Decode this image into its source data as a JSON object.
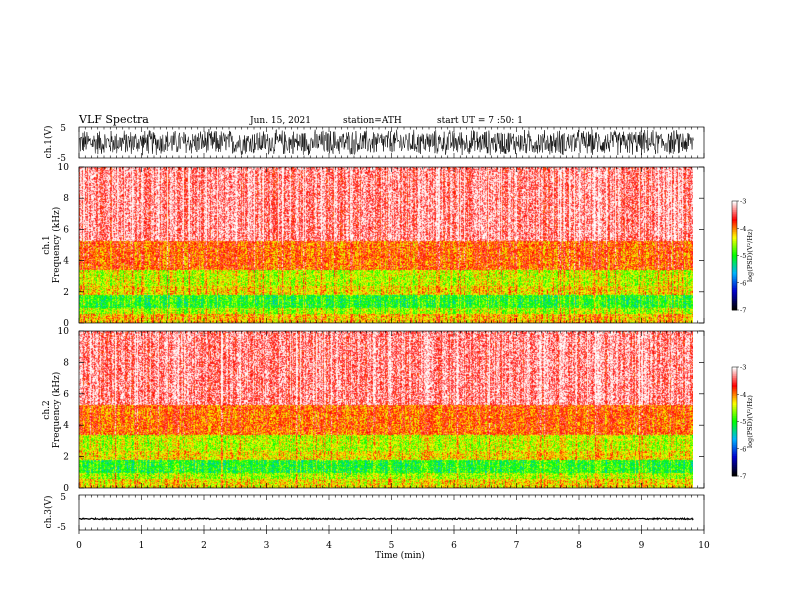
{
  "header": {
    "title": "VLF Spectra",
    "date": "Jun. 15, 2021",
    "station": "station=ATH",
    "start_ut": "start UT =  7 :50: 1"
  },
  "chart_data": [
    {
      "type": "line",
      "panel": "ch1-waveform",
      "ylabel": "ch.1(V)",
      "yticks": [
        "5",
        "-5"
      ],
      "ylim": [
        -5,
        5
      ],
      "xlim": [
        0,
        10
      ],
      "x_extent": [
        0,
        9.83
      ],
      "amplitude": 4.5,
      "line_color": "#000000"
    },
    {
      "type": "heatmap",
      "panel": "ch1-spectrogram",
      "ylabel_top": "ch.1",
      "ylabel": "Frequency (kHz)",
      "yticks": [
        "0",
        "2",
        "4",
        "6",
        "8",
        "10"
      ],
      "ylim": [
        0,
        10
      ],
      "xlim": [
        0,
        10
      ],
      "x_extent": [
        0,
        9.83
      ],
      "colorbar": {
        "label": "log(PSD)(V²/Hz)",
        "ticks": [
          "-3",
          "-4",
          "-5",
          "-6",
          "-7"
        ],
        "range": [
          -7,
          -3
        ],
        "colors": [
          "#000000",
          "#0000cc",
          "#00b4ff",
          "#00ff00",
          "#ffff00",
          "#ff0000",
          "#ffffff"
        ]
      },
      "bands": [
        {
          "from": 0,
          "to": 0.6,
          "level": -4.2
        },
        {
          "from": 0.6,
          "to": 1.0,
          "level": -4.6
        },
        {
          "from": 1.0,
          "to": 1.8,
          "level": -5.0
        },
        {
          "from": 1.8,
          "to": 2.4,
          "level": -4.3
        },
        {
          "from": 2.4,
          "to": 3.4,
          "level": -4.5
        },
        {
          "from": 3.4,
          "to": 5.3,
          "level": -3.9
        },
        {
          "from": 5.3,
          "to": 10,
          "level": -3.3
        }
      ]
    },
    {
      "type": "heatmap",
      "panel": "ch2-spectrogram",
      "ylabel_top": "ch.2",
      "ylabel": "Frequency (kHz)",
      "yticks": [
        "0",
        "2",
        "4",
        "6",
        "8",
        "10"
      ],
      "ylim": [
        0,
        10
      ],
      "xlim": [
        0,
        10
      ],
      "x_extent": [
        0,
        9.83
      ],
      "colorbar": {
        "label": "log(PSD)(V²/Hz)",
        "ticks": [
          "-3",
          "-4",
          "-5",
          "-6",
          "-7"
        ],
        "range": [
          -7,
          -3
        ],
        "colors": [
          "#000000",
          "#0000cc",
          "#00b4ff",
          "#00ff00",
          "#ffff00",
          "#ff0000",
          "#ffffff"
        ]
      },
      "bands": [
        {
          "from": 0,
          "to": 0.6,
          "level": -4.3
        },
        {
          "from": 0.6,
          "to": 1.0,
          "level": -4.6
        },
        {
          "from": 1.0,
          "to": 1.8,
          "level": -5.0
        },
        {
          "from": 1.8,
          "to": 2.4,
          "level": -4.3
        },
        {
          "from": 2.4,
          "to": 3.4,
          "level": -4.5
        },
        {
          "from": 3.4,
          "to": 5.3,
          "level": -3.9
        },
        {
          "from": 5.3,
          "to": 10,
          "level": -3.3
        }
      ]
    },
    {
      "type": "line",
      "panel": "ch3-waveform",
      "ylabel": "ch.3(V)",
      "yticks": [
        "5",
        "-5"
      ],
      "ylim": [
        -5,
        5
      ],
      "xlim": [
        0,
        10
      ],
      "x_extent": [
        0,
        9.83
      ],
      "baseline": -1.8,
      "amplitude": 0.2,
      "line_color": "#000000"
    }
  ],
  "xaxis": {
    "label": "Time (min)",
    "ticks": [
      "0",
      "1",
      "2",
      "3",
      "4",
      "5",
      "6",
      "7",
      "8",
      "9",
      "10"
    ]
  }
}
